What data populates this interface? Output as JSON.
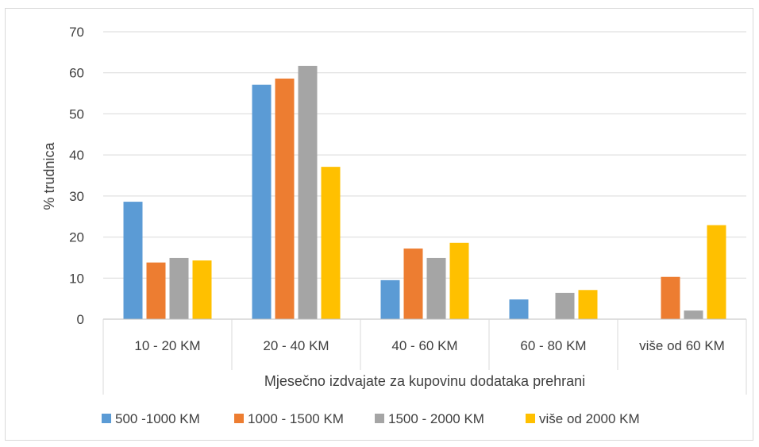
{
  "chart_data": {
    "type": "bar",
    "xlabel": "Mjesečno izdvajate za kupovinu dodataka prehrani",
    "ylabel": "% trudnica",
    "ylim": [
      0,
      70
    ],
    "yticks": [
      0,
      10,
      20,
      30,
      40,
      50,
      60,
      70
    ],
    "grid": true,
    "legend_position": "bottom",
    "categories": [
      "10 - 20 KM",
      "20 - 40 KM",
      "40 - 60 KM",
      "60 - 80 KM",
      "više od 60 KM"
    ],
    "series": [
      {
        "name": "500 -1000 KM",
        "color": "#5B9BD5",
        "values": [
          28.6,
          57.1,
          9.5,
          4.8,
          0
        ]
      },
      {
        "name": "1000 - 1500 KM",
        "color": "#ED7D31",
        "values": [
          13.8,
          58.6,
          17.2,
          0,
          10.3
        ]
      },
      {
        "name": "1500 - 2000 KM",
        "color": "#A5A5A5",
        "values": [
          14.9,
          61.7,
          14.9,
          6.4,
          2.1
        ]
      },
      {
        "name": "više od 2000 KM",
        "color": "#FFC000",
        "values": [
          14.3,
          37.1,
          18.6,
          7.1,
          22.9
        ]
      }
    ]
  }
}
